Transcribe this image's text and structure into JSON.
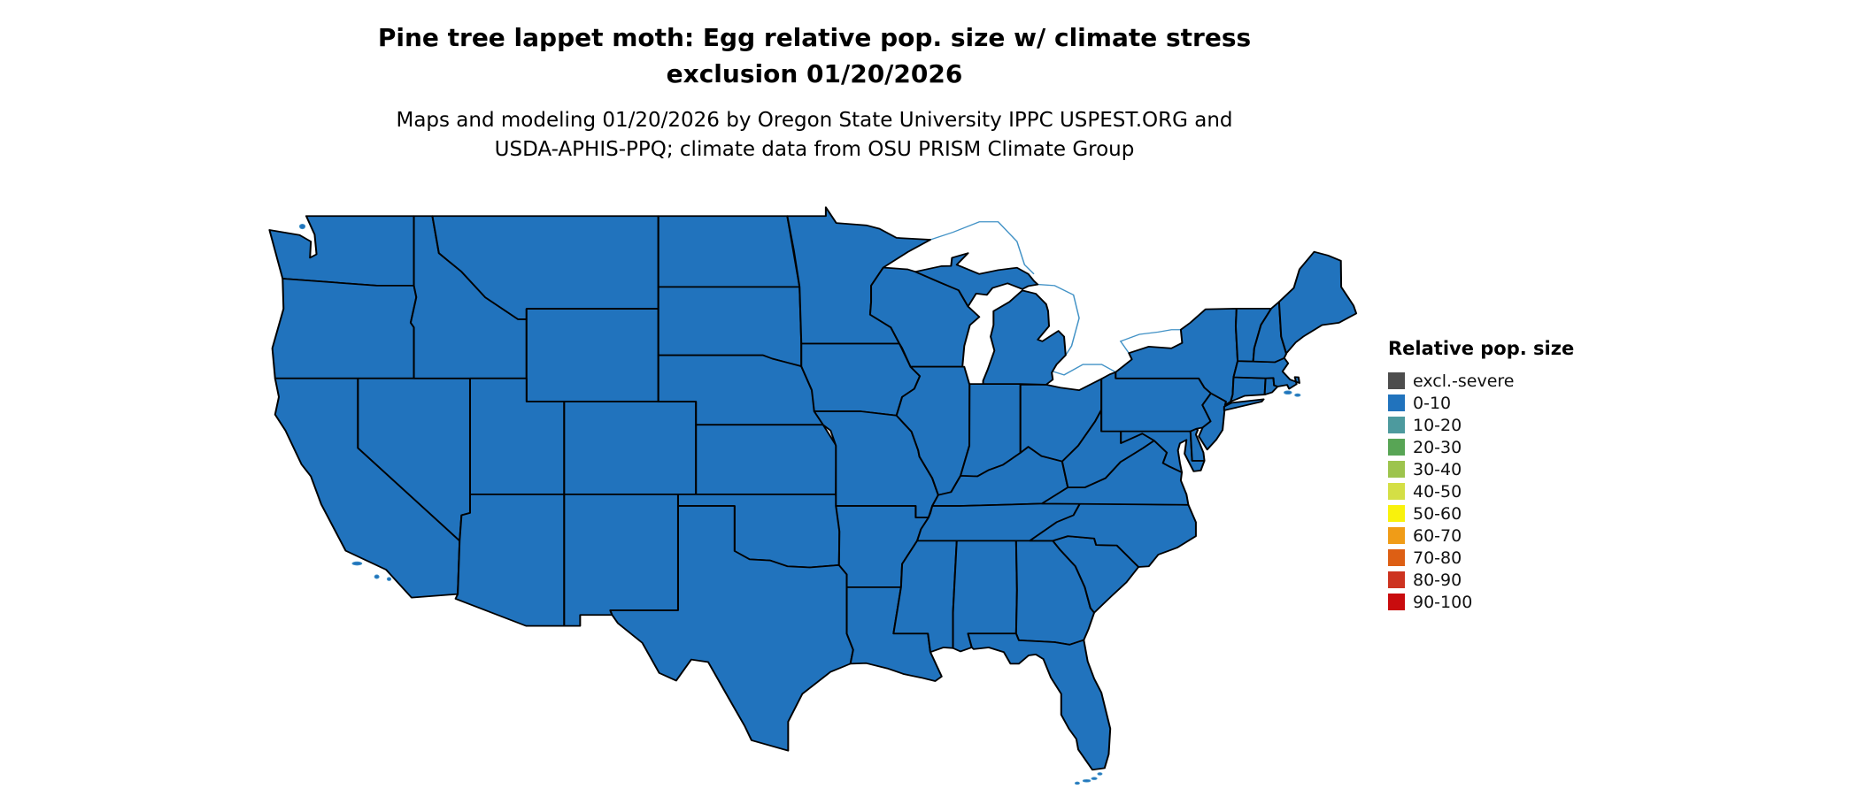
{
  "title": {
    "line1": "Pine tree lappet moth: Egg relative pop. size w/ climate stress",
    "line2": "exclusion 01/20/2026"
  },
  "subtitle": {
    "line1": "Maps and modeling 01/20/2026 by Oregon State University IPPC USPEST.ORG and",
    "line2": "USDA-APHIS-PPQ; climate data from OSU PRISM Climate Group"
  },
  "legend": {
    "title": "Relative pop. size",
    "items": [
      {
        "label": "excl.-severe",
        "color": "#4d4d4d"
      },
      {
        "label": "0-10",
        "color": "#2173bd"
      },
      {
        "label": "10-20",
        "color": "#4d9a9e"
      },
      {
        "label": "20-30",
        "color": "#58a555"
      },
      {
        "label": "30-40",
        "color": "#9dc44d"
      },
      {
        "label": "40-50",
        "color": "#d4df45"
      },
      {
        "label": "50-60",
        "color": "#f9f20c"
      },
      {
        "label": "60-70",
        "color": "#f09c17"
      },
      {
        "label": "70-80",
        "color": "#dd5f14"
      },
      {
        "label": "80-90",
        "color": "#cd3320"
      },
      {
        "label": "90-100",
        "color": "#c90c0e"
      }
    ]
  },
  "map": {
    "area": "Contiguous United States",
    "displayed_category_all_states": "0-10",
    "state_fill_color": "#2173bd",
    "state_border_color": "#000000",
    "water_outline_color": "#4292c6"
  }
}
